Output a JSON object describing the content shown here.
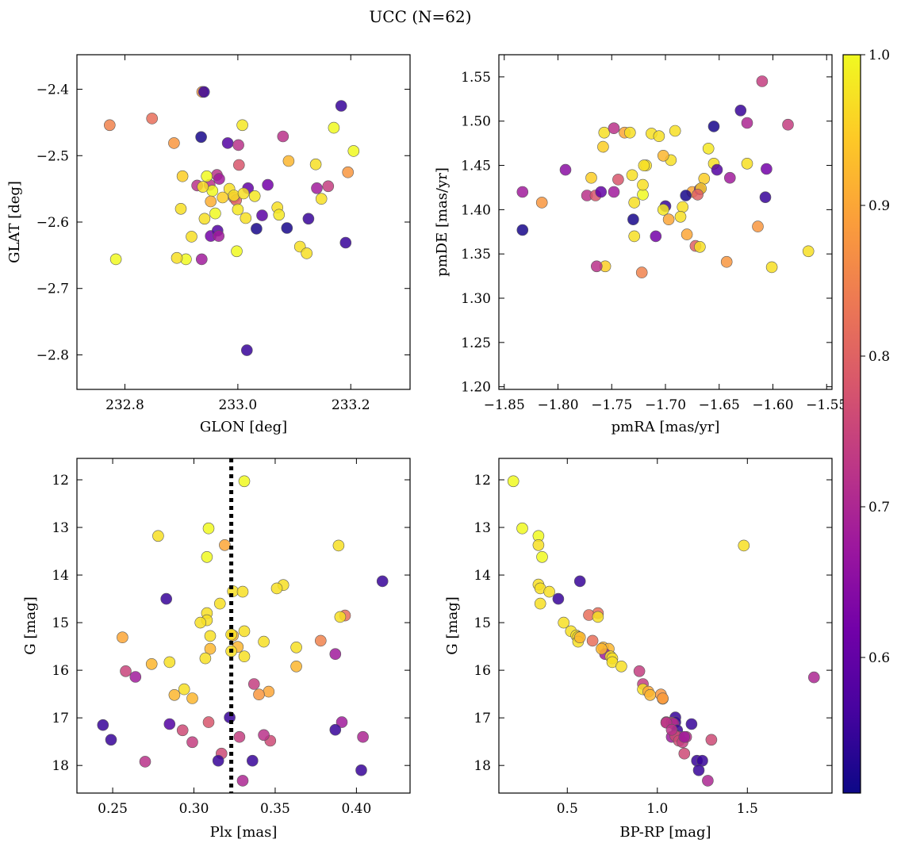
{
  "figure_title": "UCC (N=62)",
  "colors": {
    "cmap": [
      "#0d0887",
      "#46039f",
      "#7201a8",
      "#9c179e",
      "#bd3786",
      "#d8576b",
      "#ed7953",
      "#fb9f3a",
      "#fdca26",
      "#f0f921"
    ],
    "threshold_line": "#000000"
  },
  "colorbar": {
    "min": 0.51,
    "max": 1.0,
    "ticks": [
      0.6,
      0.7,
      0.8,
      0.9,
      1.0
    ],
    "tick_labels": [
      "0.6",
      "0.7",
      "0.8",
      "0.9",
      "1.0"
    ]
  },
  "chart_data": [
    {
      "type": "scatter",
      "id": "sky",
      "xlabel": "GLON [deg]",
      "ylabel": "GLAT [deg]",
      "xlim": [
        232.715,
        233.305
      ],
      "ylim": [
        -2.852,
        -2.348
      ],
      "xticks": [
        232.8,
        233.0,
        233.2
      ],
      "xtick_labels": [
        "232.8",
        "233.0",
        "233.2"
      ],
      "yticks": [
        -2.4,
        -2.5,
        -2.6,
        -2.7,
        -2.8
      ],
      "ytick_labels": [
        "−2.4",
        "−2.5",
        "−2.6",
        "−2.7",
        "−2.8"
      ],
      "x": [
        232.937,
        232.94,
        232.982,
        233.001,
        233.191,
        232.848,
        232.773,
        232.887,
        232.935,
        233.008,
        233.08,
        233.183,
        233.17,
        233.205,
        233.002,
        233.09,
        232.902,
        232.928,
        232.95,
        232.955,
        232.963,
        232.967,
        232.985,
        232.993,
        232.997,
        233.018,
        233.053,
        233.138,
        233.14,
        232.938,
        232.945,
        232.993,
        233.01,
        233.03,
        233.07,
        233.16,
        232.973,
        232.952,
        233.0,
        232.96,
        233.014,
        232.941,
        232.952,
        232.964,
        232.899,
        232.966,
        233.043,
        233.125,
        233.033,
        233.073,
        233.087,
        232.918,
        232.998,
        232.908,
        232.936,
        233.11,
        233.122,
        233.195,
        233.148,
        232.892,
        232.784,
        233.016
      ],
      "y": [
        -2.404,
        -2.404,
        -2.481,
        -2.484,
        -2.631,
        -2.444,
        -2.454,
        -2.481,
        -2.472,
        -2.454,
        -2.471,
        -2.425,
        -2.458,
        -2.493,
        -2.514,
        -2.508,
        -2.531,
        -2.545,
        -2.544,
        -2.553,
        -2.529,
        -2.535,
        -2.55,
        -2.563,
        -2.567,
        -2.549,
        -2.544,
        -2.513,
        -2.549,
        -2.547,
        -2.531,
        -2.56,
        -2.557,
        -2.561,
        -2.578,
        -2.546,
        -2.563,
        -2.569,
        -2.581,
        -2.587,
        -2.594,
        -2.595,
        -2.621,
        -2.613,
        -2.58,
        -2.621,
        -2.59,
        -2.595,
        -2.61,
        -2.589,
        -2.609,
        -2.622,
        -2.644,
        -2.656,
        -2.656,
        -2.637,
        -2.647,
        -2.525,
        -2.565,
        -2.654,
        -2.656,
        -2.793
      ],
      "c": [
        0.88,
        0.55,
        0.58,
        0.72,
        0.55,
        0.82,
        0.85,
        0.88,
        0.52,
        0.98,
        0.72,
        0.55,
        1.0,
        1.0,
        0.78,
        0.92,
        0.95,
        0.72,
        0.72,
        1.0,
        0.72,
        0.68,
        0.97,
        0.83,
        0.8,
        0.6,
        0.62,
        0.97,
        0.68,
        0.97,
        1.0,
        0.97,
        0.97,
        0.98,
        0.97,
        0.74,
        0.95,
        0.91,
        0.98,
        1.0,
        0.97,
        0.97,
        0.62,
        0.58,
        0.97,
        0.68,
        0.59,
        0.55,
        0.52,
        0.98,
        0.52,
        0.97,
        1.0,
        1.0,
        0.68,
        0.97,
        0.97,
        0.88,
        0.97,
        0.97,
        1.0,
        0.55
      ]
    },
    {
      "type": "scatter",
      "id": "pm",
      "xlabel": "pmRA [mas/yr]",
      "ylabel": "pmDE [mas/yr]",
      "xlim": [
        -1.855,
        -1.545
      ],
      "ylim": [
        1.197,
        1.575
      ],
      "xticks": [
        -1.85,
        -1.8,
        -1.75,
        -1.7,
        -1.65,
        -1.6,
        -1.55
      ],
      "xtick_labels": [
        "−1.85",
        "−1.80",
        "−1.75",
        "−1.70",
        "−1.65",
        "−1.60",
        "−1.55"
      ],
      "yticks": [
        1.2,
        1.25,
        1.3,
        1.35,
        1.4,
        1.45,
        1.5,
        1.55
      ],
      "ytick_labels": [
        "1.20",
        "1.25",
        "1.30",
        "1.35",
        "1.40",
        "1.45",
        "1.50",
        "1.55"
      ],
      "x": [
        -1.61,
        -1.586,
        -1.63,
        -1.655,
        -1.624,
        -1.757,
        -1.748,
        -1.738,
        -1.733,
        -1.713,
        -1.706,
        -1.691,
        -1.66,
        -1.744,
        -1.718,
        -1.695,
        -1.758,
        -1.793,
        -1.769,
        -1.748,
        -1.731,
        -1.72,
        -1.702,
        -1.664,
        -1.655,
        -1.652,
        -1.624,
        -1.606,
        -1.64,
        -1.675,
        -1.668,
        -1.833,
        -1.815,
        -1.773,
        -1.765,
        -1.76,
        -1.7,
        -1.684,
        -1.667,
        -1.67,
        -1.681,
        -1.729,
        -1.721,
        -1.721,
        -1.702,
        -1.607,
        -1.73,
        -1.697,
        -1.686,
        -1.709,
        -1.729,
        -1.68,
        -1.833,
        -1.614,
        -1.643,
        -1.672,
        -1.668,
        -1.567,
        -1.601,
        -1.756,
        -1.764,
        -1.722
      ],
      "y": [
        1.545,
        1.496,
        1.512,
        1.494,
        1.498,
        1.487,
        1.492,
        1.487,
        1.487,
        1.486,
        1.483,
        1.489,
        1.469,
        1.434,
        1.45,
        1.456,
        1.471,
        1.445,
        1.436,
        1.42,
        1.439,
        1.45,
        1.461,
        1.435,
        1.452,
        1.445,
        1.452,
        1.446,
        1.436,
        1.42,
        1.423,
        1.42,
        1.408,
        1.416,
        1.416,
        1.42,
        1.404,
        1.403,
        1.424,
        1.417,
        1.416,
        1.408,
        1.417,
        1.428,
        1.4,
        1.414,
        1.389,
        1.389,
        1.392,
        1.37,
        1.37,
        1.372,
        1.377,
        1.381,
        1.341,
        1.359,
        1.358,
        1.353,
        1.335,
        1.336,
        1.336,
        1.329
      ],
      "c": [
        0.74,
        0.74,
        0.55,
        0.52,
        0.7,
        0.97,
        0.72,
        0.9,
        0.97,
        0.97,
        0.97,
        0.97,
        0.98,
        0.78,
        0.97,
        0.97,
        0.95,
        0.65,
        0.95,
        0.68,
        0.97,
        0.97,
        0.92,
        0.95,
        0.97,
        0.58,
        0.97,
        0.62,
        0.68,
        0.9,
        0.6,
        0.68,
        0.88,
        0.72,
        0.78,
        0.6,
        0.55,
        0.97,
        0.95,
        0.8,
        0.52,
        0.97,
        1.0,
        0.97,
        0.98,
        0.55,
        0.52,
        0.9,
        0.97,
        0.62,
        0.97,
        0.9,
        0.52,
        0.88,
        0.88,
        0.8,
        0.97,
        0.97,
        0.97,
        0.95,
        0.72,
        0.85
      ]
    },
    {
      "type": "scatter",
      "id": "cmd-plx",
      "xlabel": "Plx [mas]",
      "ylabel": "G [mag]",
      "xlim": [
        0.228,
        0.433
      ],
      "ylim": [
        18.58,
        11.55
      ],
      "xticks": [
        0.25,
        0.3,
        0.35,
        0.4
      ],
      "xtick_labels": [
        "0.25",
        "0.30",
        "0.35",
        "0.40"
      ],
      "yticks": [
        12,
        13,
        14,
        15,
        16,
        17,
        18
      ],
      "ytick_labels": [
        "12",
        "13",
        "14",
        "15",
        "16",
        "17",
        "18"
      ],
      "vline": 0.323,
      "x": [
        0.331,
        0.309,
        0.278,
        0.319,
        0.308,
        0.389,
        0.416,
        0.324,
        0.33,
        0.355,
        0.351,
        0.283,
        0.316,
        0.308,
        0.308,
        0.304,
        0.393,
        0.39,
        0.31,
        0.331,
        0.324,
        0.256,
        0.327,
        0.31,
        0.378,
        0.343,
        0.363,
        0.331,
        0.274,
        0.285,
        0.307,
        0.363,
        0.387,
        0.258,
        0.264,
        0.294,
        0.337,
        0.346,
        0.288,
        0.34,
        0.299,
        0.322,
        0.391,
        0.244,
        0.285,
        0.309,
        0.293,
        0.387,
        0.249,
        0.299,
        0.347,
        0.404,
        0.328,
        0.343,
        0.317,
        0.315,
        0.27,
        0.336,
        0.403,
        0.33,
        0.323,
        0.323
      ],
      "y": [
        12.03,
        13.02,
        13.18,
        13.37,
        13.62,
        13.38,
        14.13,
        14.34,
        14.35,
        14.21,
        14.28,
        14.5,
        14.6,
        14.8,
        14.95,
        15.0,
        14.85,
        14.88,
        15.28,
        15.18,
        15.27,
        15.31,
        15.51,
        15.55,
        15.38,
        15.4,
        15.52,
        15.71,
        15.87,
        15.83,
        15.75,
        15.92,
        15.66,
        16.02,
        16.14,
        16.4,
        16.29,
        16.45,
        16.52,
        16.51,
        16.59,
        16.99,
        17.09,
        17.15,
        17.13,
        17.09,
        17.26,
        17.25,
        17.46,
        17.51,
        17.48,
        17.4,
        17.4,
        17.36,
        17.75,
        17.9,
        17.92,
        17.9,
        18.1,
        18.32,
        15.6,
        15.25
      ],
      "c": [
        1.0,
        1.0,
        0.97,
        0.9,
        1.0,
        0.97,
        0.55,
        0.97,
        0.97,
        0.97,
        0.97,
        0.55,
        0.97,
        0.97,
        0.97,
        0.97,
        0.82,
        0.97,
        0.97,
        0.97,
        0.92,
        0.9,
        0.92,
        0.92,
        0.85,
        0.97,
        0.97,
        0.97,
        0.92,
        0.97,
        0.97,
        0.92,
        0.68,
        0.75,
        0.68,
        0.97,
        0.74,
        0.9,
        0.92,
        0.88,
        0.92,
        0.55,
        0.68,
        0.55,
        0.58,
        0.78,
        0.76,
        0.55,
        0.55,
        0.74,
        0.76,
        0.7,
        0.74,
        0.72,
        0.76,
        0.55,
        0.72,
        0.55,
        0.55,
        0.7,
        0.97,
        0.97
      ]
    },
    {
      "type": "scatter",
      "id": "cmd-color",
      "xlabel": "BP-RP [mag]",
      "ylabel": "G [mag]",
      "xlim": [
        0.12,
        1.97
      ],
      "ylim": [
        18.58,
        11.55
      ],
      "xticks": [
        0.5,
        1.0,
        1.5
      ],
      "xtick_labels": [
        "0.5",
        "1.0",
        "1.5"
      ],
      "yticks": [
        12,
        13,
        14,
        15,
        16,
        17,
        18
      ],
      "ytick_labels": [
        "12",
        "13",
        "14",
        "15",
        "16",
        "17",
        "18"
      ],
      "x": [
        0.2,
        0.25,
        0.34,
        0.34,
        0.36,
        0.34,
        0.35,
        0.4,
        0.57,
        0.45,
        0.35,
        0.48,
        1.48,
        0.52,
        0.55,
        0.67,
        0.62,
        0.67,
        0.56,
        0.56,
        0.57,
        0.7,
        0.73,
        0.71,
        0.64,
        0.69,
        0.74,
        0.75,
        0.75,
        0.8,
        0.9,
        0.92,
        0.92,
        0.95,
        0.96,
        1.02,
        1.03,
        1.03,
        1.1,
        1.1,
        1.05,
        1.08,
        1.09,
        1.11,
        1.1,
        1.08,
        1.12,
        1.1,
        1.19,
        1.05,
        1.08,
        1.12,
        1.14,
        1.16,
        1.15,
        1.22,
        1.25,
        1.23,
        1.28,
        1.3,
        1.15,
        1.87
      ],
      "y": [
        12.03,
        13.02,
        13.18,
        13.37,
        13.62,
        14.2,
        14.28,
        14.35,
        14.13,
        14.5,
        14.6,
        15.0,
        13.38,
        15.18,
        15.27,
        14.8,
        14.84,
        14.88,
        15.3,
        15.4,
        15.31,
        15.52,
        15.55,
        15.66,
        15.38,
        15.55,
        15.71,
        15.75,
        15.83,
        15.92,
        16.02,
        16.29,
        16.4,
        16.45,
        16.52,
        16.51,
        16.6,
        16.59,
        16.99,
        17.09,
        17.09,
        17.1,
        17.12,
        17.26,
        17.36,
        17.4,
        17.4,
        17.38,
        17.13,
        17.1,
        17.25,
        17.48,
        17.51,
        17.4,
        17.75,
        17.9,
        17.9,
        18.1,
        18.32,
        17.46,
        17.4,
        16.15
      ],
      "c": [
        1.0,
        1.0,
        1.0,
        0.97,
        1.0,
        0.97,
        0.97,
        0.97,
        0.55,
        0.55,
        0.97,
        0.97,
        0.97,
        0.97,
        0.97,
        0.82,
        0.82,
        0.97,
        0.97,
        0.97,
        0.92,
        0.92,
        0.92,
        0.68,
        0.82,
        0.92,
        0.97,
        0.97,
        0.97,
        0.97,
        0.74,
        0.74,
        0.97,
        0.9,
        0.92,
        0.88,
        0.92,
        0.88,
        0.55,
        0.55,
        0.78,
        0.76,
        0.7,
        0.55,
        0.55,
        0.68,
        0.74,
        0.76,
        0.55,
        0.72,
        0.72,
        0.76,
        0.74,
        0.72,
        0.76,
        0.55,
        0.55,
        0.55,
        0.7,
        0.76,
        0.68,
        0.7
      ]
    }
  ]
}
